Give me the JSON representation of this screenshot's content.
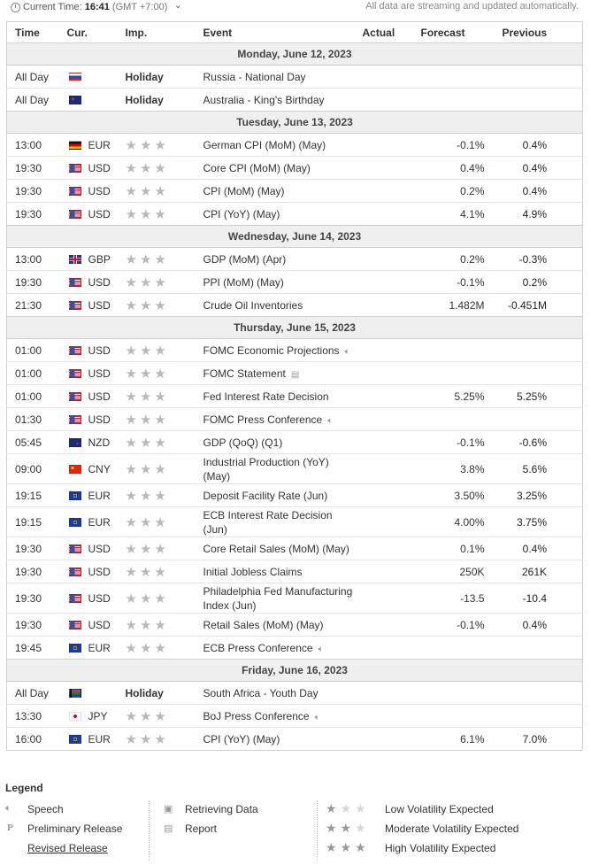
{
  "header": {
    "current_time_label": "Current Time:",
    "current_time": "16:41",
    "timezone": "(GMT +7:00)",
    "caret": "⌄",
    "notice": "All data are streaming and updated automatically."
  },
  "columns": {
    "time": "Time",
    "currency": "Cur.",
    "importance": "Imp.",
    "event": "Event",
    "actual": "Actual",
    "forecast": "Forecast",
    "previous": "Previous"
  },
  "days": [
    {
      "date": "Monday, June 12, 2023",
      "events": [
        {
          "time": "All Day",
          "flag": "russia-flag",
          "currency": "",
          "importance": "Holiday",
          "event": "Russia - National Day",
          "actual": "",
          "forecast": "",
          "previous": ""
        },
        {
          "time": "All Day",
          "flag": "australia-flag",
          "currency": "",
          "importance": "Holiday",
          "event": "Australia - King's Birthday",
          "actual": "",
          "forecast": "",
          "previous": ""
        }
      ]
    },
    {
      "date": "Tuesday, June 13, 2023",
      "events": [
        {
          "time": "13:00",
          "flag": "germany-flag",
          "currency": "EUR",
          "importance": "★★★",
          "event": "German CPI (MoM) (May)",
          "actual": "",
          "forecast": "-0.1%",
          "previous": "0.4%"
        },
        {
          "time": "19:30",
          "flag": "usa-flag",
          "currency": "USD",
          "importance": "★★★",
          "event": "Core CPI (MoM) (May)",
          "actual": "",
          "forecast": "0.4%",
          "previous": "0.4%"
        },
        {
          "time": "19:30",
          "flag": "usa-flag",
          "currency": "USD",
          "importance": "★★★",
          "event": "CPI (MoM) (May)",
          "actual": "",
          "forecast": "0.2%",
          "previous": "0.4%"
        },
        {
          "time": "19:30",
          "flag": "usa-flag",
          "currency": "USD",
          "importance": "★★★",
          "event": "CPI (YoY) (May)",
          "actual": "",
          "forecast": "4.1%",
          "previous": "4.9%"
        }
      ]
    },
    {
      "date": "Wednesday, June 14, 2023",
      "events": [
        {
          "time": "13:00",
          "flag": "uk-flag",
          "currency": "GBP",
          "importance": "★★★",
          "event": "GDP (MoM) (Apr)",
          "actual": "",
          "forecast": "0.2%",
          "previous": "-0.3%"
        },
        {
          "time": "19:30",
          "flag": "usa-flag",
          "currency": "USD",
          "importance": "★★★",
          "event": "PPI (MoM) (May)",
          "actual": "",
          "forecast": "-0.1%",
          "previous": "0.2%"
        },
        {
          "time": "21:30",
          "flag": "usa-flag",
          "currency": "USD",
          "importance": "★★★",
          "event": "Crude Oil Inventories",
          "actual": "",
          "forecast": "1.482M",
          "previous": "-0.451M"
        }
      ]
    },
    {
      "date": "Thursday, June 15, 2023",
      "events": [
        {
          "time": "01:00",
          "flag": "usa-flag",
          "currency": "USD",
          "importance": "★★★",
          "event": "FOMC Economic Projections",
          "icon": "speech-icon",
          "actual": "",
          "forecast": "",
          "previous": ""
        },
        {
          "time": "01:00",
          "flag": "usa-flag",
          "currency": "USD",
          "importance": "★★★",
          "event": "FOMC Statement",
          "icon": "report-icon",
          "actual": "",
          "forecast": "",
          "previous": ""
        },
        {
          "time": "01:00",
          "flag": "usa-flag",
          "currency": "USD",
          "importance": "★★★",
          "event": "Fed Interest Rate Decision",
          "actual": "",
          "forecast": "5.25%",
          "previous": "5.25%"
        },
        {
          "time": "01:30",
          "flag": "usa-flag",
          "currency": "USD",
          "importance": "★★★",
          "event": "FOMC Press Conference",
          "icon": "speech-icon",
          "actual": "",
          "forecast": "",
          "previous": ""
        },
        {
          "time": "05:45",
          "flag": "newzealand-flag",
          "currency": "NZD",
          "importance": "★★★",
          "event": "GDP (QoQ) (Q1)",
          "actual": "",
          "forecast": "-0.1%",
          "previous": "-0.6%"
        },
        {
          "time": "09:00",
          "flag": "china-flag",
          "currency": "CNY",
          "importance": "★★★",
          "event": "Industrial Production (YoY) (May)",
          "actual": "",
          "forecast": "3.8%",
          "previous": "5.6%",
          "tall": true
        },
        {
          "time": "19:15",
          "flag": "eu-flag",
          "currency": "EUR",
          "importance": "★★★",
          "event": "Deposit Facility Rate (Jun)",
          "actual": "",
          "forecast": "3.50%",
          "previous": "3.25%"
        },
        {
          "time": "19:15",
          "flag": "eu-flag",
          "currency": "EUR",
          "importance": "★★★",
          "event": "ECB Interest Rate Decision (Jun)",
          "actual": "",
          "forecast": "4.00%",
          "previous": "3.75%",
          "tall": true
        },
        {
          "time": "19:30",
          "flag": "usa-flag",
          "currency": "USD",
          "importance": "★★★",
          "event": "Core Retail Sales (MoM) (May)",
          "actual": "",
          "forecast": "0.1%",
          "previous": "0.4%"
        },
        {
          "time": "19:30",
          "flag": "usa-flag",
          "currency": "USD",
          "importance": "★★★",
          "event": "Initial Jobless Claims",
          "actual": "",
          "forecast": "250K",
          "previous": "261K"
        },
        {
          "time": "19:30",
          "flag": "usa-flag",
          "currency": "USD",
          "importance": "★★★",
          "event": "Philadelphia Fed Manufacturing Index (Jun)",
          "actual": "",
          "forecast": "-13.5",
          "previous": "-10.4",
          "tall": true
        },
        {
          "time": "19:30",
          "flag": "usa-flag",
          "currency": "USD",
          "importance": "★★★",
          "event": "Retail Sales (MoM) (May)",
          "actual": "",
          "forecast": "-0.1%",
          "previous": "0.4%"
        },
        {
          "time": "19:45",
          "flag": "eu-flag",
          "currency": "EUR",
          "importance": "★★★",
          "event": "ECB Press Conference",
          "icon": "speech-icon",
          "actual": "",
          "forecast": "",
          "previous": ""
        }
      ]
    },
    {
      "date": "Friday, June 16, 2023",
      "events": [
        {
          "time": "All Day",
          "flag": "southafrica-flag",
          "currency": "",
          "importance": "Holiday",
          "event": "South Africa - Youth Day",
          "actual": "",
          "forecast": "",
          "previous": ""
        },
        {
          "time": "13:30",
          "flag": "japan-flag",
          "currency": "JPY",
          "importance": "★★★",
          "event": "BoJ Press Conference",
          "icon": "speech-icon",
          "actual": "",
          "forecast": "",
          "previous": ""
        },
        {
          "time": "16:00",
          "flag": "eu-flag",
          "currency": "EUR",
          "importance": "★★★",
          "event": "CPI (YoY) (May)",
          "actual": "",
          "forecast": "6.1%",
          "previous": "7.0%"
        }
      ]
    }
  ],
  "legend": {
    "title": "Legend",
    "speech": "Speech",
    "preliminary": "Preliminary Release",
    "preliminary_mark": "P",
    "revised": "Revised Release",
    "retrieving": "Retrieving Data",
    "report": "Report",
    "low": "Low Volatility Expected",
    "moderate": "Moderate Volatility Expected",
    "high": "High Volatility Expected"
  }
}
